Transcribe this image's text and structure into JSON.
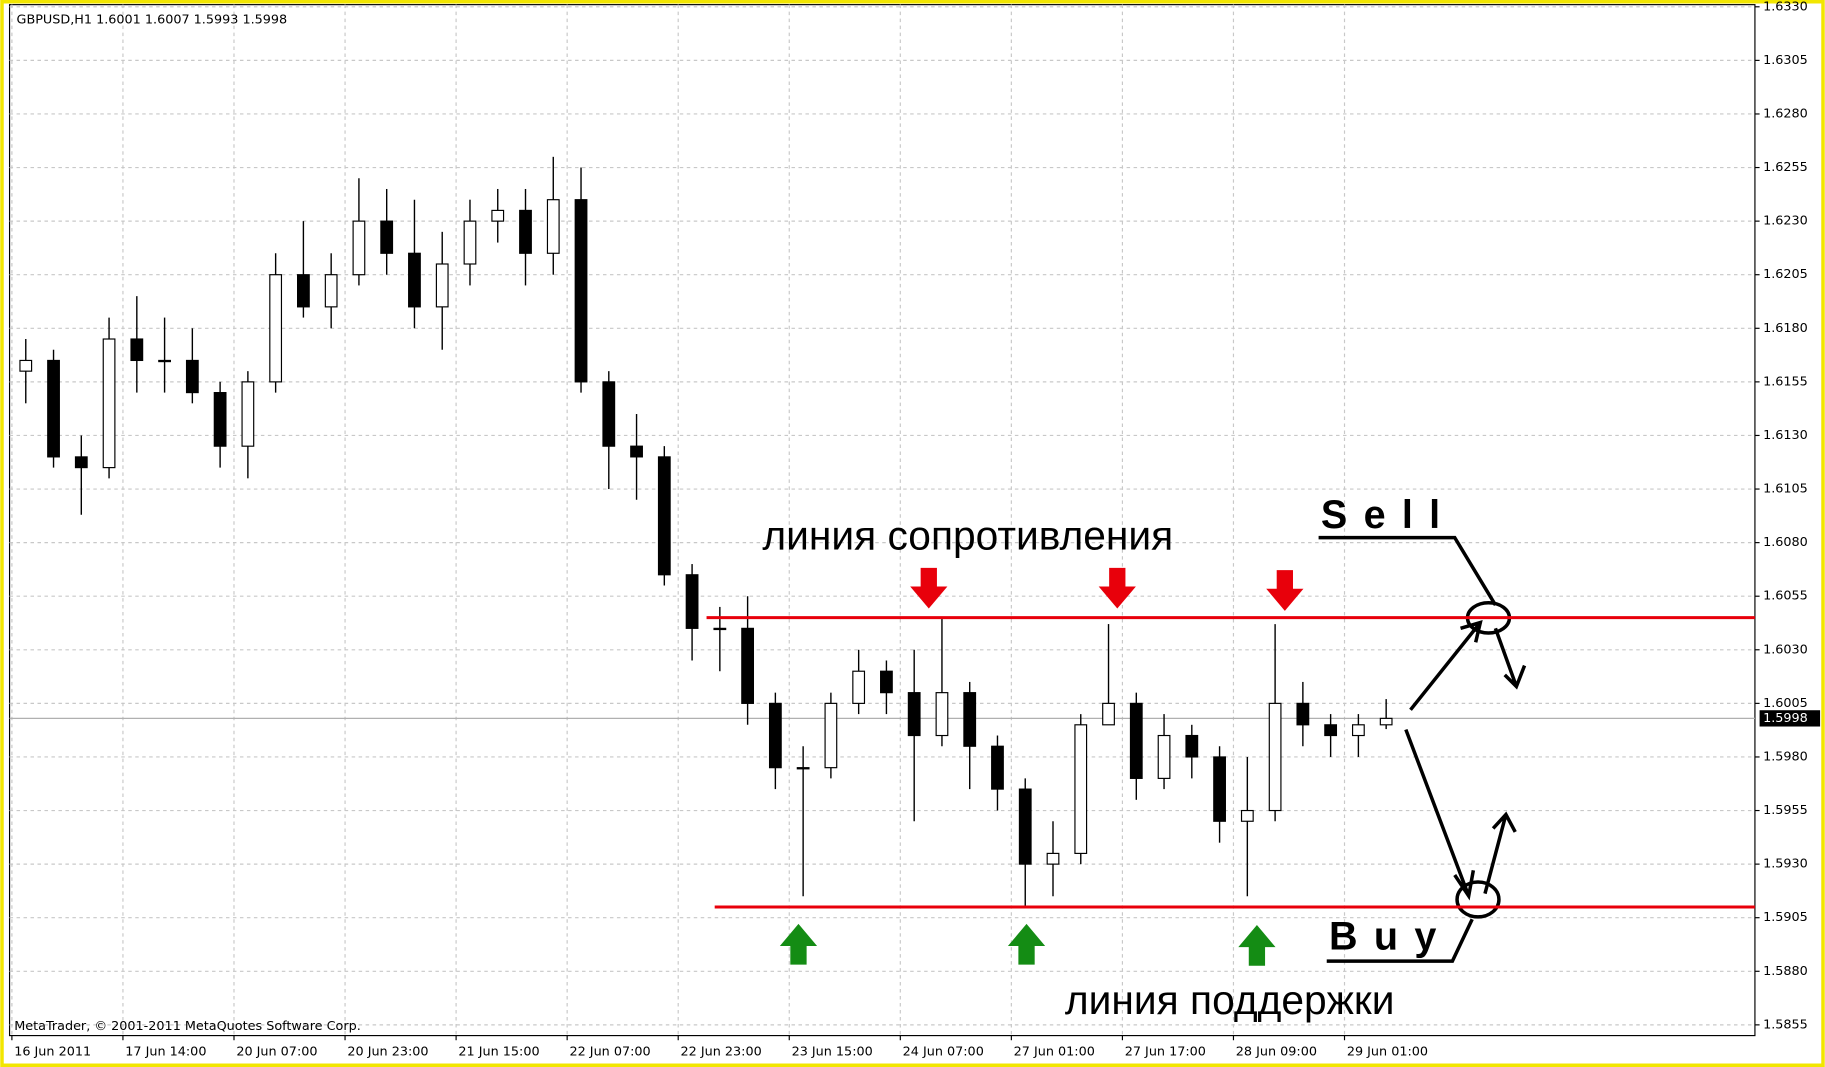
{
  "chart_data": {
    "type": "candlestick",
    "title": "GBPUSD,H1 1.6001 1.6007 1.5993 1.5998",
    "footer": "MetaTrader, © 2001-2011 MetaQuotes Software Corp.",
    "categories": [
      "16 Jun 2011",
      null,
      null,
      null,
      "17 Jun 14:00",
      null,
      null,
      null,
      "20 Jun 07:00",
      null,
      null,
      null,
      "20 Jun 23:00",
      null,
      null,
      null,
      "21 Jun 15:00",
      null,
      null,
      null,
      "22 Jun 07:00",
      null,
      null,
      null,
      "22 Jun 23:00",
      null,
      null,
      null,
      "23 Jun 15:00",
      null,
      null,
      null,
      "24 Jun 07:00",
      null,
      null,
      null,
      "27 Jun 01:00",
      null,
      null,
      null,
      "27 Jun 17:00",
      null,
      null,
      null,
      "28 Jun 09:00",
      null,
      null,
      null,
      "29 Jun 01:00",
      null
    ],
    "open": [
      1.616,
      1.6165,
      1.612,
      1.6115,
      1.6175,
      1.6165,
      1.6165,
      1.615,
      1.6125,
      1.6155,
      1.6205,
      1.619,
      1.6205,
      1.623,
      1.6215,
      1.619,
      1.621,
      1.623,
      1.6235,
      1.6215,
      1.624,
      1.6155,
      1.6125,
      1.612,
      1.6065,
      1.604,
      1.604,
      1.6005,
      1.5975,
      1.5975,
      1.6005,
      1.602,
      1.601,
      1.599,
      1.601,
      1.5985,
      1.5965,
      1.593,
      1.5935,
      1.5995,
      1.6005,
      1.597,
      1.599,
      1.598,
      1.595,
      1.5955,
      1.6005,
      1.5995,
      1.599,
      1.5995
    ],
    "high": [
      1.6175,
      1.617,
      1.613,
      1.6185,
      1.6195,
      1.6185,
      1.618,
      1.6155,
      1.616,
      1.6215,
      1.623,
      1.6215,
      1.625,
      1.6245,
      1.624,
      1.6225,
      1.624,
      1.6245,
      1.6245,
      1.626,
      1.6255,
      1.616,
      1.614,
      1.6125,
      1.607,
      1.605,
      1.6055,
      1.601,
      1.5985,
      1.601,
      1.603,
      1.6025,
      1.603,
      1.6045,
      1.6015,
      1.599,
      1.597,
      1.595,
      1.6,
      1.6042,
      1.601,
      1.6,
      1.5995,
      1.5985,
      1.598,
      1.6042,
      1.6015,
      1.6,
      1.6,
      1.6007
    ],
    "low": [
      1.6145,
      1.6115,
      1.6093,
      1.611,
      1.615,
      1.615,
      1.6145,
      1.6115,
      1.611,
      1.615,
      1.6185,
      1.618,
      1.62,
      1.6205,
      1.618,
      1.617,
      1.62,
      1.622,
      1.62,
      1.6205,
      1.615,
      1.6105,
      1.61,
      1.606,
      1.6025,
      1.602,
      1.5995,
      1.5965,
      1.5915,
      1.597,
      1.6,
      1.6,
      1.595,
      1.5985,
      1.5965,
      1.5955,
      1.591,
      1.5915,
      1.593,
      1.5995,
      1.596,
      1.5965,
      1.597,
      1.594,
      1.5915,
      1.595,
      1.5985,
      1.598,
      1.598,
      1.5993
    ],
    "close": [
      1.6165,
      1.612,
      1.6115,
      1.6175,
      1.6165,
      1.6165,
      1.615,
      1.6125,
      1.6155,
      1.6205,
      1.619,
      1.6205,
      1.623,
      1.6215,
      1.619,
      1.621,
      1.623,
      1.6235,
      1.6215,
      1.624,
      1.6155,
      1.6125,
      1.612,
      1.6065,
      1.604,
      1.604,
      1.6005,
      1.5975,
      1.5975,
      1.6005,
      1.602,
      1.601,
      1.599,
      1.601,
      1.5985,
      1.5965,
      1.593,
      1.5935,
      1.5995,
      1.6005,
      1.597,
      1.599,
      1.598,
      1.595,
      1.5955,
      1.6005,
      1.5995,
      1.599,
      1.5995,
      1.5998
    ],
    "levels": [
      {
        "name": "линия сопротивления",
        "value": 1.6045,
        "color": "#e8000b"
      },
      {
        "name": "линия поддержки",
        "value": 1.591,
        "color": "#e8000b"
      }
    ],
    "signals": [
      "Sell",
      "Buy"
    ],
    "ylim": [
      1.585,
      1.6331
    ],
    "yticks": [
      1.5855,
      {
        "value": 1.588,
        "label": "1.5880"
      },
      1.5905,
      {
        "value": 1.593,
        "label": "1.5930"
      },
      1.5955,
      {
        "value": 1.598,
        "label": "1.5980"
      },
      1.6005,
      {
        "value": 1.603,
        "label": "1.6030"
      },
      1.6055,
      {
        "value": 1.608,
        "label": "1.6080"
      },
      1.6105,
      {
        "value": 1.613,
        "label": "1.6130"
      },
      1.6155,
      {
        "value": 1.618,
        "label": "1.6180"
      },
      1.6205,
      {
        "value": 1.623,
        "label": "1.6230"
      },
      1.6255,
      {
        "value": 1.628,
        "label": "1.6280"
      },
      1.6305,
      {
        "value": 1.633,
        "label": "1.6330"
      }
    ],
    "grid": true
  }
}
